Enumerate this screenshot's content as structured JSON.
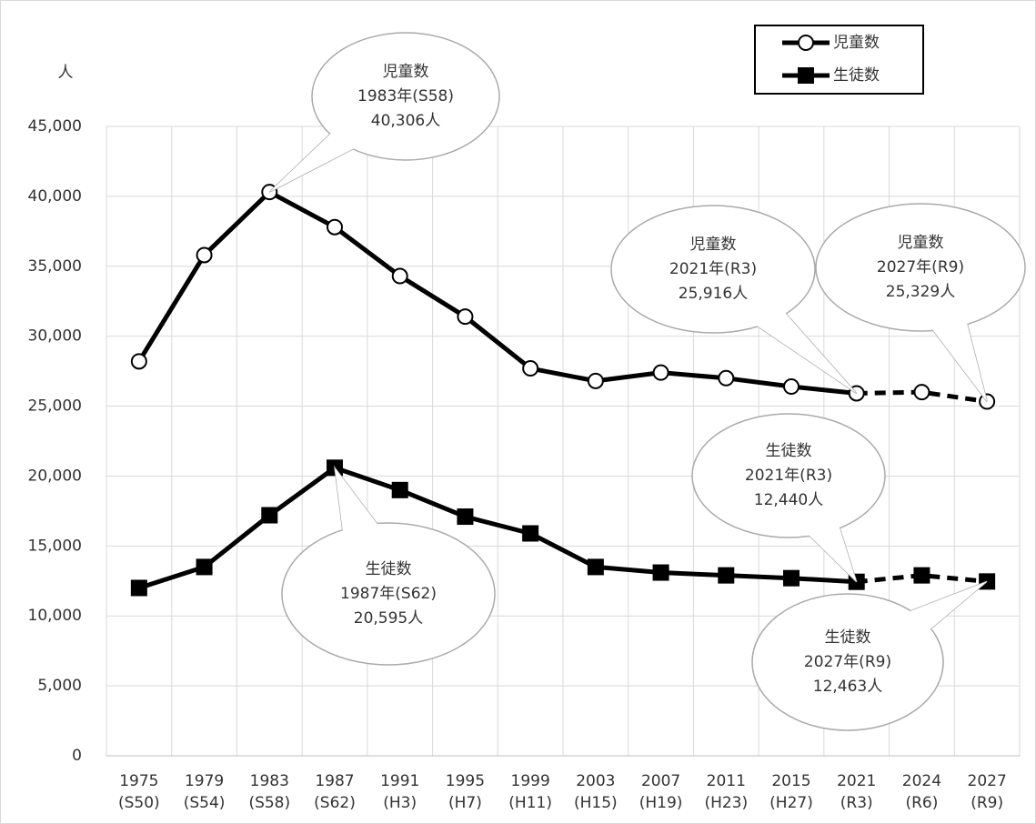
{
  "chart_data": {
    "type": "line",
    "y_unit": "人",
    "categories": [
      [
        "1975",
        "(S50)"
      ],
      [
        "1979",
        "(S54)"
      ],
      [
        "1983",
        "(S58)"
      ],
      [
        "1987",
        "(S62)"
      ],
      [
        "1991",
        "(H3)"
      ],
      [
        "1995",
        "(H7)"
      ],
      [
        "1999",
        "(H11)"
      ],
      [
        "2003",
        "(H15)"
      ],
      [
        "2007",
        "(H19)"
      ],
      [
        "2011",
        "(H23)"
      ],
      [
        "2015",
        "(H27)"
      ],
      [
        "2021",
        "(R3)"
      ],
      [
        "2024",
        "(R6)"
      ],
      [
        "2027",
        "(R9)"
      ]
    ],
    "projection_from": "2021",
    "series": [
      {
        "name": "児童数",
        "color": "#000000",
        "marker": "circle",
        "values": [
          28200,
          35800,
          40306,
          37800,
          34300,
          31400,
          27700,
          26800,
          27400,
          27000,
          26400,
          25916,
          26000,
          25329
        ]
      },
      {
        "name": "生徒数",
        "color": "#000000",
        "marker": "square",
        "values": [
          12000,
          13500,
          17200,
          20595,
          19000,
          17100,
          15900,
          13500,
          13100,
          12900,
          12700,
          12440,
          12900,
          12463
        ]
      }
    ],
    "ylim": [
      0,
      45000
    ],
    "yticks": [
      0,
      {
        "value": 5000,
        "label": "5,000"
      },
      {
        "value": 10000,
        "label": "10,000"
      },
      {
        "value": 15000,
        "label": "15,000"
      },
      {
        "value": 20000,
        "label": "20,000"
      },
      {
        "value": 25000,
        "label": "25,000"
      },
      {
        "value": 30000,
        "label": "30,000"
      },
      {
        "value": 35000,
        "label": "35,000"
      },
      {
        "value": 40000,
        "label": "40,000"
      },
      {
        "value": 45000,
        "label": "45,000"
      }
    ],
    "grid": true,
    "legend": "upper right",
    "annotations": [
      {
        "lines": [
          "児童数",
          "1983年(S58)",
          "40,306人"
        ]
      },
      {
        "lines": [
          "児童数",
          "2021年(R3)",
          "25,916人"
        ]
      },
      {
        "lines": [
          "児童数",
          "2027年(R9)",
          "25,329人"
        ]
      },
      {
        "lines": [
          "生徒数",
          "1987年(S62)",
          "20,595人"
        ]
      },
      {
        "lines": [
          "生徒数",
          "2021年(R3)",
          "12,440人"
        ]
      },
      {
        "lines": [
          "生徒数",
          "2027年(R9)",
          "12,463人"
        ]
      }
    ]
  }
}
